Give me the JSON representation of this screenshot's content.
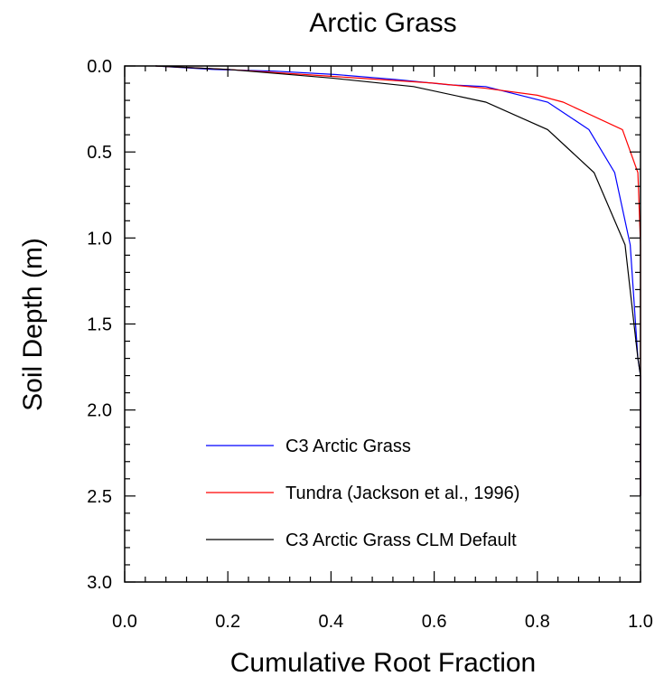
{
  "chart_data": {
    "type": "line",
    "title": "Arctic Grass",
    "xlabel": "Cumulative Root Fraction",
    "ylabel": "Soil Depth (m)",
    "xlim": [
      0.0,
      1.0
    ],
    "ylim": [
      3.0,
      0.0
    ],
    "y_inverted": true,
    "x_ticks": [
      "0.0",
      "0.2",
      "0.4",
      "0.6",
      "0.8",
      "1.0"
    ],
    "y_ticks": [
      "0.0",
      "0.5",
      "1.0",
      "1.5",
      "2.0",
      "2.5",
      "3.0"
    ],
    "grid": false,
    "legend_position": "bottom-center",
    "series": [
      {
        "name": "C3 Arctic Grass",
        "color": "#0000ff",
        "x": [
          0.06,
          0.17,
          0.29,
          0.41,
          0.53,
          0.63,
          0.7,
          0.82,
          0.9,
          0.95,
          0.98,
          0.995,
          1.0,
          1.0,
          1.0
        ],
        "y": [
          0.0,
          0.02,
          0.03,
          0.05,
          0.08,
          0.11,
          0.12,
          0.21,
          0.37,
          0.62,
          1.04,
          1.7,
          1.8,
          2.3,
          2.5
        ]
      },
      {
        "name": "Tundra (Jackson et al., 1996)",
        "color": "#ff0000",
        "x": [
          0.06,
          0.2,
          0.4,
          0.6,
          0.7,
          0.8,
          0.85,
          0.965,
          0.995,
          1.0,
          1.0,
          1.0,
          1.0
        ],
        "y": [
          0.0,
          0.02,
          0.06,
          0.1,
          0.13,
          0.17,
          0.21,
          0.37,
          0.62,
          1.04,
          1.7,
          2.3,
          2.5
        ]
      },
      {
        "name": "C3 Arctic Grass CLM Default",
        "color": "#000000",
        "x": [
          0.06,
          0.2,
          0.4,
          0.56,
          0.7,
          0.82,
          0.91,
          0.97,
          0.995,
          1.0,
          1.0,
          1.0
        ],
        "y": [
          0.0,
          0.02,
          0.07,
          0.12,
          0.21,
          0.37,
          0.62,
          1.04,
          1.7,
          1.8,
          2.3,
          2.5
        ]
      }
    ]
  }
}
